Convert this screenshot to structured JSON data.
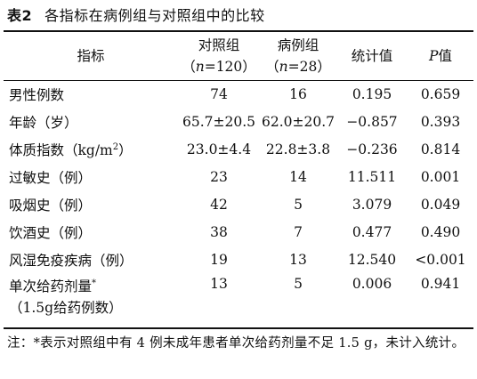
{
  "caption": {
    "label": "表2",
    "title": "各指标在病例组与对照组中的比较"
  },
  "headers": {
    "indicator": "指标",
    "control_name": "对照组",
    "control_n_open": "（",
    "control_n_sym": "n",
    "control_n_val": "=120）",
    "case_name": "病例组",
    "case_n_open": "（",
    "case_n_sym": "n",
    "case_n_val": "=28）",
    "stat": "统计值",
    "p_sym": "P",
    "p_rest": "值"
  },
  "rows": [
    {
      "indicator": "男性例数",
      "control": "74",
      "case": "16",
      "stat": "0.195",
      "p": "0.659"
    },
    {
      "indicator": "年龄（岁）",
      "control": "65.7±20.5",
      "case": "62.0±20.7",
      "stat": "−0.857",
      "p": "0.393"
    },
    {
      "indicator": "体质指数（kg/m",
      "indicator_sup": "2",
      "indicator_end": "）",
      "control": "23.0±4.4",
      "case": "22.8±3.8",
      "stat": "−0.236",
      "p": "0.814"
    },
    {
      "indicator": "过敏史（例）",
      "control": "23",
      "case": "14",
      "stat": "11.511",
      "p": "0.001"
    },
    {
      "indicator": "吸烟史（例）",
      "control": "42",
      "case": "5",
      "stat": "3.079",
      "p": "0.049"
    },
    {
      "indicator": "饮酒史（例）",
      "control": "38",
      "case": "7",
      "stat": "0.477",
      "p": "0.490"
    },
    {
      "indicator": "风湿免疫疾病（例）",
      "control": "19",
      "case": "13",
      "stat": "12.540",
      "p": "<0.001"
    },
    {
      "indicator": "单次给药剂量",
      "indicator_sup": "*",
      "indicator_line2": "（1.5g给药例数）",
      "control": "13",
      "case": "5",
      "stat": "0.006",
      "p": "0.941"
    }
  ],
  "note": "注：*表示对照组中有 4 例未成年患者单次给药剂量不足 1.5 g，未计入统计。"
}
